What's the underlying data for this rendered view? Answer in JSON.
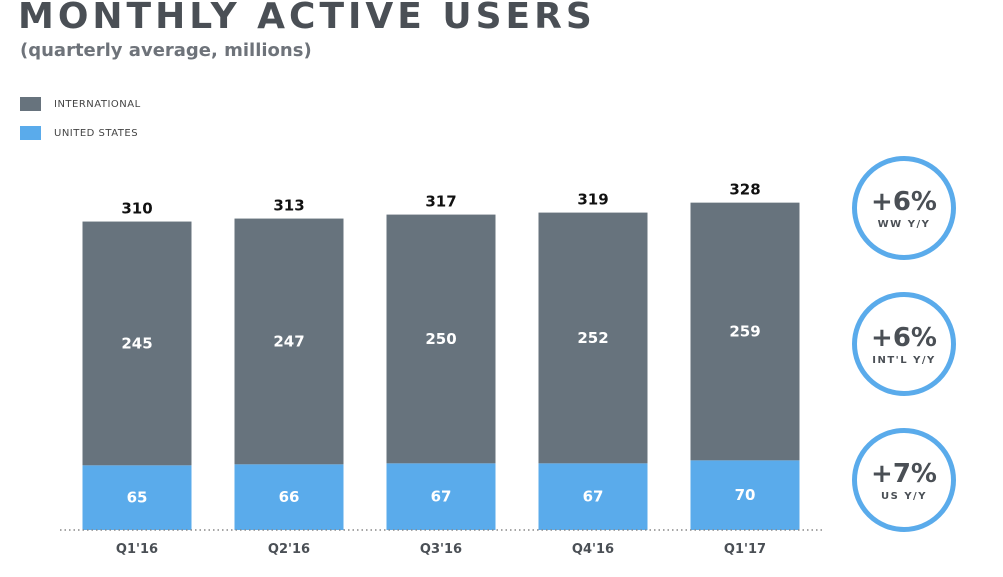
{
  "header": {
    "title": "MONTHLY ACTIVE USERS",
    "subtitle": "(quarterly average, millions)"
  },
  "legend": [
    {
      "label": "INTERNATIONAL",
      "color": "#67737d"
    },
    {
      "label": "UNITED STATES",
      "color": "#5aabeb"
    }
  ],
  "chart_data": {
    "type": "bar",
    "stacked": true,
    "categories": [
      "Q1'16",
      "Q2'16",
      "Q3'16",
      "Q4'16",
      "Q1'17"
    ],
    "series": [
      {
        "name": "UNITED STATES",
        "values": [
          65,
          66,
          67,
          67,
          70
        ],
        "color": "#5aabeb"
      },
      {
        "name": "INTERNATIONAL",
        "values": [
          245,
          247,
          250,
          252,
          259
        ],
        "color": "#67737d"
      }
    ],
    "totals": [
      310,
      313,
      317,
      319,
      328
    ],
    "title": "MONTHLY ACTIVE USERS",
    "subtitle": "(quarterly average, millions)",
    "xlabel": "",
    "ylabel": "",
    "grid": false,
    "legend_position": "top-left"
  },
  "growth": [
    {
      "value": "+6%",
      "label": "WW Y/Y"
    },
    {
      "value": "+6%",
      "label": "INT'L Y/Y"
    },
    {
      "value": "+7%",
      "label": "US Y/Y"
    }
  ]
}
